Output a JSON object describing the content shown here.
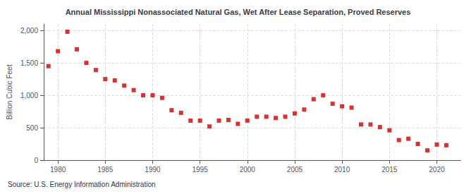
{
  "chart_data": {
    "type": "scatter",
    "title": "Annual Mississippi Nonassociated Natural Gas, Wet After Lease Separation, Proved Reserves",
    "ylabel": "Billion Cubic Feet",
    "source": "Source: U.S. Energy Information Administration",
    "color": "#cc0000",
    "marker": "square",
    "grid": true,
    "x": [
      1979,
      1980,
      1981,
      1982,
      1983,
      1984,
      1985,
      1986,
      1987,
      1988,
      1989,
      1990,
      1991,
      1992,
      1993,
      1994,
      1995,
      1996,
      1997,
      1998,
      1999,
      2000,
      2001,
      2002,
      2003,
      2004,
      2005,
      2006,
      2007,
      2008,
      2009,
      2010,
      2011,
      2012,
      2013,
      2014,
      2015,
      2016,
      2017,
      2018,
      2019,
      2020,
      2021
    ],
    "values": [
      1450,
      1680,
      1980,
      1710,
      1500,
      1390,
      1250,
      1230,
      1150,
      1080,
      1000,
      1000,
      960,
      770,
      730,
      610,
      610,
      520,
      610,
      620,
      560,
      610,
      670,
      670,
      650,
      670,
      720,
      780,
      940,
      1000,
      870,
      830,
      810,
      550,
      550,
      510,
      460,
      310,
      330,
      250,
      150,
      240,
      230
    ],
    "xlim": [
      1978.5,
      2022.5
    ],
    "ylim": [
      0,
      2100
    ],
    "xticks": [
      1980,
      1985,
      1990,
      1995,
      2000,
      2005,
      2010,
      2015,
      2020
    ],
    "yticks": [
      0,
      500,
      {
        "value": 1000,
        "label": "1,000"
      },
      {
        "value": 1500,
        "label": "1,500"
      },
      {
        "value": 2000,
        "label": "2,000"
      }
    ]
  }
}
